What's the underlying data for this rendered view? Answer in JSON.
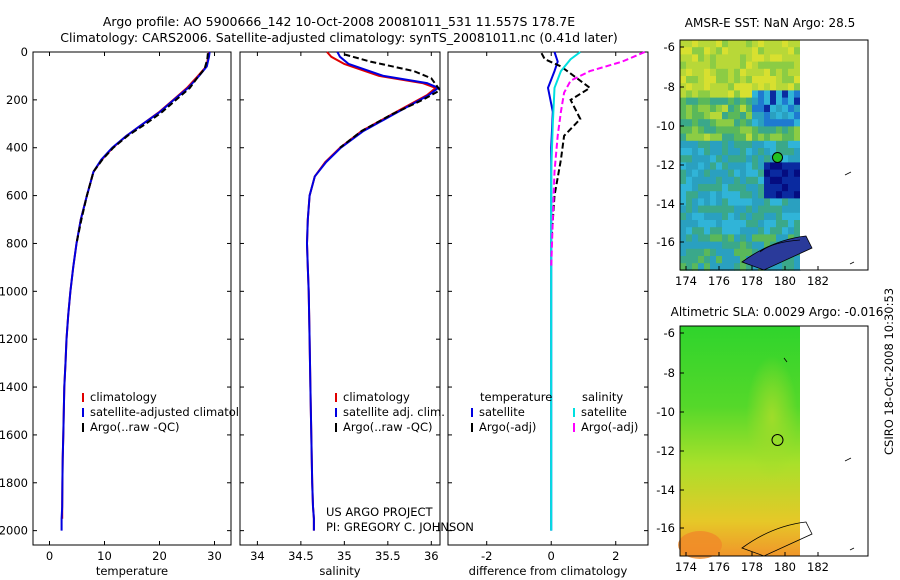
{
  "titles": {
    "line1": "Argo profile: AO 5900666_142 10-Oct-2008 20081011_531 11.557S 178.7E",
    "line2": "Climatology: CARS2006. Satellite-adjusted climatology: synTS_20081011.nc (0.41d later)"
  },
  "credit": {
    "project": "US ARGO PROJECT",
    "pi": "PI: GREGORY C. JOHNSON"
  },
  "side_label": "CSIRO 18-Oct-2008 10:30:53",
  "chart_data": [
    {
      "id": "temperature",
      "type": "line",
      "xlabel": "temperature",
      "ylabel": "",
      "xlim": [
        -3,
        33
      ],
      "ylim": [
        2060,
        0
      ],
      "xticks": [
        "0",
        "10",
        "20",
        "30"
      ],
      "xtick_values": [
        0,
        10,
        20,
        30
      ],
      "yticks": [
        "0",
        "200",
        "400",
        "600",
        "800",
        "1000",
        "1200",
        "1400",
        "1600",
        "1800",
        "2000"
      ],
      "ytick_values": [
        0,
        200,
        400,
        600,
        800,
        1000,
        1200,
        1400,
        1600,
        1800,
        2000
      ],
      "legend": [
        "climatology",
        "satellite-adjusted climatology",
        "Argo(..raw -QC)"
      ],
      "series": [
        {
          "name": "climatology",
          "color": "#e00000",
          "x": [
            29.0,
            28.9,
            28.5,
            27.0,
            25.0,
            22.5,
            20.0,
            17.0,
            14.0,
            11.5,
            9.5,
            8.0,
            6.8,
            5.7,
            4.9,
            4.3,
            3.8,
            3.4,
            3.1,
            2.9,
            2.7,
            2.6,
            2.5,
            2.4,
            2.35,
            2.3,
            2.3
          ],
          "depth": [
            0,
            20,
            60,
            100,
            150,
            200,
            250,
            300,
            350,
            400,
            450,
            500,
            600,
            700,
            800,
            900,
            1000,
            1100,
            1200,
            1300,
            1400,
            1500,
            1600,
            1700,
            1800,
            1900,
            1950
          ]
        },
        {
          "name": "satellite-adjusted climatology",
          "color": "#0000e0",
          "x": [
            29.1,
            29.0,
            28.6,
            27.2,
            25.2,
            22.6,
            20.1,
            17.0,
            14.0,
            11.4,
            9.4,
            8.0,
            6.8,
            5.7,
            4.9,
            4.3,
            3.8,
            3.4,
            3.1,
            2.9,
            2.7,
            2.6,
            2.5,
            2.4,
            2.35,
            2.3,
            2.2,
            2.2
          ],
          "depth": [
            0,
            20,
            60,
            100,
            150,
            200,
            250,
            300,
            350,
            400,
            450,
            500,
            600,
            700,
            800,
            900,
            1000,
            1100,
            1200,
            1300,
            1400,
            1500,
            1600,
            1700,
            1800,
            1900,
            1950,
            2000
          ]
        },
        {
          "name": "Argo(..raw -QC)",
          "color": "#000000",
          "dashed": true,
          "x": [
            28.8,
            28.7,
            28.2,
            26.8,
            25.5,
            23.0,
            20.5,
            17.5,
            14.2,
            11.6,
            9.6,
            8.0,
            6.8,
            5.8,
            4.9
          ],
          "depth": [
            5,
            30,
            70,
            110,
            150,
            200,
            250,
            300,
            350,
            400,
            450,
            500,
            600,
            700,
            800
          ]
        }
      ]
    },
    {
      "id": "salinity",
      "type": "line",
      "xlabel": "salinity",
      "xlim": [
        33.8,
        36.1
      ],
      "ylim": [
        2060,
        0
      ],
      "xticks": [
        "34",
        "34.5",
        "35",
        "35.5",
        "36"
      ],
      "xtick_values": [
        34,
        34.5,
        35,
        35.5,
        36
      ],
      "legend": [
        "climatology",
        "satellite adj. clim.",
        "Argo(..raw -QC)"
      ],
      "series": [
        {
          "name": "climatology",
          "color": "#e00000",
          "x": [
            34.8,
            34.85,
            35.0,
            35.4,
            35.9,
            36.05,
            35.95,
            35.6,
            35.2,
            34.95,
            34.78,
            34.66,
            34.6,
            34.58,
            34.57,
            34.58,
            34.59,
            34.6,
            34.61,
            34.62,
            34.63,
            34.64,
            34.65,
            34.65
          ],
          "depth": [
            0,
            20,
            50,
            100,
            130,
            150,
            180,
            250,
            330,
            400,
            460,
            520,
            600,
            700,
            800,
            900,
            1000,
            1200,
            1400,
            1600,
            1800,
            1900,
            1950,
            2000
          ]
        },
        {
          "name": "satellite adj. clim.",
          "color": "#0000e0",
          "x": [
            34.92,
            34.95,
            35.05,
            35.45,
            35.95,
            36.08,
            35.97,
            35.62,
            35.22,
            34.96,
            34.79,
            34.66,
            34.6,
            34.58,
            34.57,
            34.58,
            34.59,
            34.6,
            34.61,
            34.62,
            34.63,
            34.64,
            34.65,
            34.65
          ],
          "depth": [
            0,
            20,
            50,
            100,
            130,
            150,
            180,
            250,
            330,
            400,
            460,
            520,
            600,
            700,
            800,
            900,
            1000,
            1200,
            1400,
            1600,
            1800,
            1900,
            1950,
            2000
          ]
        },
        {
          "name": "Argo(..raw -QC)",
          "color": "#000000",
          "dashed": true,
          "x": [
            35.0,
            35.3,
            35.8,
            36.0,
            36.1,
            35.9,
            35.55,
            35.2,
            34.95
          ],
          "depth": [
            10,
            40,
            80,
            110,
            160,
            200,
            260,
            330,
            400
          ]
        }
      ]
    },
    {
      "id": "difference",
      "type": "line",
      "xlabel": "difference from climatology",
      "xlim": [
        -3.2,
        3.0
      ],
      "ylim": [
        2060,
        0
      ],
      "xticks": [
        "-2",
        "0",
        "2"
      ],
      "xtick_values": [
        -2,
        0,
        2
      ],
      "legend_headers": [
        "temperature",
        "salinity"
      ],
      "legend": [
        "satellite",
        "Argo(-adj)",
        "satellite",
        "Argo(-adj)"
      ],
      "series": [
        {
          "name": "temperature satellite",
          "color": "#0000e0",
          "x": [
            0.1,
            0.2,
            0.1,
            -0.1,
            0.05,
            0.0,
            0.0,
            0.0,
            0.0,
            0.0
          ],
          "depth": [
            0,
            40,
            80,
            150,
            250,
            400,
            800,
            1200,
            1600,
            2000
          ]
        },
        {
          "name": "temperature Argo(-adj)",
          "color": "#000000",
          "dashed": true,
          "x": [
            -0.3,
            -0.2,
            0.3,
            0.7,
            1.2,
            0.6,
            0.9,
            0.4,
            0.3,
            0.1,
            0.0
          ],
          "depth": [
            5,
            30,
            60,
            100,
            150,
            200,
            280,
            350,
            450,
            600,
            800
          ]
        },
        {
          "name": "salinity satellite",
          "color": "#00e0e0",
          "x": [
            0.9,
            0.6,
            0.3,
            0.1,
            0.05,
            0.0,
            0.0,
            0.0,
            0.0
          ],
          "depth": [
            0,
            30,
            80,
            150,
            300,
            500,
            1000,
            1500,
            2000
          ]
        },
        {
          "name": "salinity Argo(-adj)",
          "color": "#ff00ff",
          "dashed": true,
          "x": [
            2.9,
            2.2,
            1.2,
            0.6,
            0.4,
            0.3,
            0.2,
            0.1,
            0.05,
            0.0
          ],
          "depth": [
            0,
            40,
            80,
            120,
            170,
            250,
            350,
            500,
            700,
            900
          ]
        }
      ]
    }
  ],
  "maps": {
    "sst": {
      "title": "AMSR-E SST: NaN Argo: 28.5",
      "xticks": [
        "174",
        "176",
        "178",
        "180",
        "182"
      ],
      "yticks": [
        "-6",
        "-8",
        "-10",
        "-12",
        "-14",
        "-16"
      ]
    },
    "sla": {
      "title": "Altimetric SLA: 0.0029 Argo: -0.016",
      "xticks": [
        "174",
        "176",
        "178",
        "180",
        "182"
      ],
      "yticks": [
        "-6",
        "-8",
        "-10",
        "-12",
        "-14",
        "-16"
      ]
    }
  }
}
